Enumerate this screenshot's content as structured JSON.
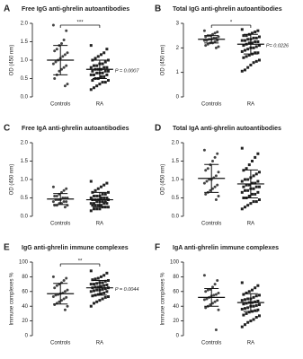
{
  "chart_data": [
    {
      "type": "dot",
      "letter": "A",
      "title": "Free IgG anti-ghrelin autoantibodies",
      "ylabel": "OD (450 nm)",
      "categories": [
        "Controls",
        "RA"
      ],
      "markers": [
        "circle",
        "square"
      ],
      "values": [
        [
          1.95,
          1.8,
          1.55,
          1.45,
          1.4,
          1.3,
          1.25,
          1.2,
          1.15,
          1.1,
          1.05,
          1.0,
          0.95,
          0.9,
          0.85,
          0.8,
          0.75,
          0.7,
          0.6,
          0.5,
          0.35,
          0.3
        ],
        [
          1.4,
          1.3,
          1.2,
          1.15,
          1.1,
          1.05,
          1.0,
          1.0,
          0.95,
          0.9,
          0.9,
          0.85,
          0.85,
          0.8,
          0.8,
          0.8,
          0.75,
          0.75,
          0.75,
          0.7,
          0.7,
          0.7,
          0.65,
          0.65,
          0.65,
          0.6,
          0.6,
          0.6,
          0.55,
          0.55,
          0.5,
          0.5,
          0.45,
          0.45,
          0.4,
          0.4,
          0.35,
          0.3,
          0.25,
          0.2
        ]
      ],
      "means": [
        1.0,
        0.75
      ],
      "sds": [
        0.4,
        0.25
      ],
      "significance": "***",
      "p_label": "P = 0.0007",
      "ylim": [
        0,
        2
      ],
      "yticks": [
        {
          "value": 0,
          "label": "0.0"
        },
        0.5,
        {
          "value": 1,
          "label": "1.0"
        },
        1.5,
        {
          "value": 2,
          "label": "2.0"
        }
      ]
    },
    {
      "type": "dot",
      "letter": "B",
      "title": "Total IgG anti-ghrelin autoantibodies",
      "ylabel": "OD (450 nm)",
      "categories": [
        "Controls",
        "RA"
      ],
      "markers": [
        "circle",
        "square"
      ],
      "values": [
        [
          2.7,
          2.65,
          2.6,
          2.55,
          2.5,
          2.5,
          2.45,
          2.45,
          2.4,
          2.4,
          2.35,
          2.35,
          2.3,
          2.3,
          2.3,
          2.25,
          2.2,
          2.2,
          2.15,
          2.1,
          2.05,
          2.0
        ],
        [
          2.75,
          2.7,
          2.65,
          2.6,
          2.55,
          2.5,
          2.5,
          2.45,
          2.4,
          2.4,
          2.35,
          2.35,
          2.3,
          2.3,
          2.25,
          2.25,
          2.2,
          2.2,
          2.15,
          2.1,
          2.1,
          2.05,
          2.0,
          2.0,
          1.95,
          1.9,
          1.85,
          1.8,
          1.8,
          1.75,
          1.7,
          1.65,
          1.6,
          1.5,
          1.45,
          1.4,
          1.3,
          1.2,
          1.1,
          1.05
        ]
      ],
      "means": [
        2.35,
        2.15
      ],
      "sds": [
        0.15,
        0.4
      ],
      "significance": "*",
      "p_label": "P= 0.0226",
      "ylim": [
        0,
        3
      ],
      "yticks": [
        0,
        1,
        2,
        3
      ]
    },
    {
      "type": "dot",
      "letter": "C",
      "title": "Free IgA anti-ghrelin autoantibodies",
      "ylabel": "OD (450 nm)",
      "categories": [
        "Controls",
        "RA"
      ],
      "markers": [
        "circle",
        "square"
      ],
      "values": [
        [
          0.8,
          0.75,
          0.7,
          0.65,
          0.6,
          0.55,
          0.55,
          0.5,
          0.5,
          0.5,
          0.45,
          0.45,
          0.45,
          0.4,
          0.4,
          0.4,
          0.35,
          0.35,
          0.3,
          0.3,
          0.3,
          0.25
        ],
        [
          0.95,
          0.9,
          0.85,
          0.8,
          0.75,
          0.7,
          0.65,
          0.65,
          0.6,
          0.6,
          0.55,
          0.55,
          0.55,
          0.5,
          0.5,
          0.5,
          0.5,
          0.45,
          0.45,
          0.45,
          0.45,
          0.4,
          0.4,
          0.4,
          0.4,
          0.35,
          0.35,
          0.35,
          0.35,
          0.3,
          0.3,
          0.3,
          0.3,
          0.25,
          0.25,
          0.25,
          0.2,
          0.2,
          0.2,
          0.15
        ]
      ],
      "means": [
        0.47,
        0.45
      ],
      "sds": [
        0.15,
        0.2
      ],
      "ylim": [
        0,
        2
      ],
      "yticks": [
        {
          "value": 0,
          "label": "0.0"
        },
        0.5,
        {
          "value": 1,
          "label": "1.0"
        },
        1.5,
        {
          "value": 2,
          "label": "2.0"
        }
      ]
    },
    {
      "type": "dot",
      "letter": "D",
      "title": "Total IgA anti-ghrelin autoantibodies",
      "ylabel": "OD (450 nm)",
      "categories": [
        "Controls",
        "RA"
      ],
      "markers": [
        "circle",
        "square"
      ],
      "values": [
        [
          1.8,
          1.7,
          1.6,
          1.5,
          1.4,
          1.3,
          1.25,
          1.2,
          1.1,
          1.05,
          1.0,
          1.0,
          0.95,
          0.9,
          0.85,
          0.8,
          0.75,
          0.7,
          0.65,
          0.6,
          0.55,
          0.45
        ],
        [
          1.85,
          1.7,
          1.6,
          1.5,
          1.4,
          1.3,
          1.25,
          1.2,
          1.15,
          1.1,
          1.05,
          1.0,
          1.0,
          0.95,
          0.95,
          0.9,
          0.9,
          0.85,
          0.85,
          0.8,
          0.8,
          0.8,
          0.75,
          0.75,
          0.7,
          0.7,
          0.65,
          0.65,
          0.6,
          0.6,
          0.55,
          0.5,
          0.5,
          0.45,
          0.4,
          0.4,
          0.35,
          0.3,
          0.25,
          0.2
        ]
      ],
      "means": [
        1.03,
        0.88
      ],
      "sds": [
        0.38,
        0.38
      ],
      "ylim": [
        0,
        2
      ],
      "yticks": [
        {
          "value": 0,
          "label": "0.0"
        },
        0.5,
        {
          "value": 1,
          "label": "1.0"
        },
        1.5,
        {
          "value": 2,
          "label": "2.0"
        }
      ]
    },
    {
      "type": "dot",
      "letter": "E",
      "title": "IgG anti-ghrelin immune complexes",
      "ylabel": "Immune complexes %",
      "categories": [
        "Controls",
        "RA"
      ],
      "markers": [
        "circle",
        "square"
      ],
      "values": [
        [
          80,
          78,
          75,
          72,
          70,
          68,
          65,
          62,
          60,
          58,
          57,
          56,
          55,
          53,
          52,
          50,
          48,
          46,
          44,
          42,
          40,
          35
        ],
        [
          88,
          85,
          82,
          80,
          78,
          77,
          76,
          75,
          74,
          72,
          72,
          71,
          70,
          70,
          69,
          68,
          67,
          66,
          66,
          65,
          65,
          64,
          63,
          62,
          62,
          61,
          60,
          60,
          58,
          57,
          56,
          55,
          54,
          53,
          52,
          50,
          48,
          46,
          44,
          40
        ]
      ],
      "means": [
        57,
        65
      ],
      "sds": [
        14,
        10
      ],
      "significance": "**",
      "p_label": "P = 0.0044",
      "ylim": [
        0,
        100
      ],
      "yticks": [
        0,
        20,
        40,
        60,
        80,
        100
      ]
    },
    {
      "type": "dot",
      "letter": "F",
      "title": "IgA anti-ghrelin immune complexes",
      "ylabel": "Immune complexes %",
      "categories": [
        "Controls",
        "RA"
      ],
      "markers": [
        "circle",
        "square"
      ],
      "values": [
        [
          82,
          75,
          70,
          66,
          63,
          62,
          60,
          58,
          56,
          55,
          54,
          52,
          50,
          49,
          48,
          46,
          44,
          42,
          40,
          38,
          35,
          8
        ],
        [
          72,
          68,
          65,
          62,
          60,
          58,
          56,
          55,
          54,
          52,
          50,
          50,
          49,
          48,
          47,
          46,
          45,
          45,
          44,
          43,
          42,
          41,
          40,
          40,
          38,
          37,
          36,
          35,
          34,
          33,
          32,
          30,
          28,
          27,
          25,
          22,
          20,
          18,
          15,
          12
        ]
      ],
      "means": [
        52,
        45
      ],
      "sds": [
        12,
        12
      ],
      "ylim": [
        0,
        100
      ],
      "yticks": [
        0,
        20,
        40,
        60,
        80,
        100
      ]
    }
  ]
}
